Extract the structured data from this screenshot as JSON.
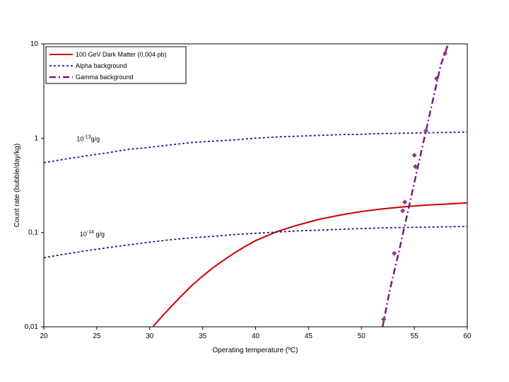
{
  "chart_data": {
    "type": "line",
    "title": "",
    "xlabel": "Operating temperature (ºC)",
    "ylabel": "Count rate (bubble/day/kg)",
    "xlim": [
      20,
      60
    ],
    "ylim": [
      0.01,
      10
    ],
    "y_scale": "log",
    "x_ticks": [
      "20",
      "25",
      "30",
      "35",
      "40",
      "45",
      "50",
      "55",
      "60"
    ],
    "y_ticks": [
      "0,01",
      "0,1",
      "1",
      "10"
    ],
    "grid": false,
    "legend_position": "top-left",
    "colors": {
      "dark_matter": "#cc0000",
      "alpha": "#1a1a99",
      "gamma": "#7a1a7a",
      "gamma_markers": "#8a3a8a"
    },
    "series": [
      {
        "name": "100 GeV Dark Matter (0,004 pb)",
        "style": "solid",
        "x": [
          30.3,
          31,
          32,
          33,
          34,
          35,
          36,
          37,
          38,
          39,
          40,
          42,
          44,
          46,
          48,
          50,
          52,
          54,
          56,
          58,
          60
        ],
        "y": [
          0.01,
          0.0123,
          0.0163,
          0.0213,
          0.0275,
          0.0345,
          0.0425,
          0.051,
          0.0607,
          0.071,
          0.082,
          0.102,
          0.12,
          0.138,
          0.153,
          0.167,
          0.178,
          0.187,
          0.195,
          0.2,
          0.206
        ]
      },
      {
        "name": "Alpha background",
        "style": "dotted",
        "x": [
          20,
          22,
          24,
          26,
          28,
          30,
          32,
          34,
          36,
          38,
          40,
          42,
          44,
          46,
          48,
          50,
          52,
          54,
          56,
          58,
          60
        ],
        "y": [
          0.55,
          0.6,
          0.65,
          0.7,
          0.76,
          0.8,
          0.85,
          0.9,
          0.93,
          0.96,
          1.0,
          1.03,
          1.05,
          1.07,
          1.09,
          1.1,
          1.12,
          1.13,
          1.14,
          1.15,
          1.16
        ]
      },
      {
        "name": "Alpha background (10^-14 g/g)",
        "style": "dotted",
        "x": [
          20,
          22,
          24,
          26,
          28,
          30,
          32,
          34,
          36,
          38,
          40,
          42,
          44,
          46,
          48,
          50,
          52,
          54,
          56,
          58,
          60
        ],
        "y": [
          0.054,
          0.059,
          0.064,
          0.069,
          0.074,
          0.079,
          0.084,
          0.088,
          0.091,
          0.095,
          0.098,
          0.101,
          0.104,
          0.106,
          0.108,
          0.11,
          0.112,
          0.113,
          0.114,
          0.115,
          0.116
        ]
      },
      {
        "name": "Gamma background",
        "style": "dashdot",
        "x": [
          52,
          52.7,
          53.5,
          54.3,
          55.1,
          55.9,
          56.7,
          57.5,
          58.2
        ],
        "y": [
          0.01,
          0.025,
          0.06,
          0.15,
          0.38,
          0.95,
          2.4,
          6.0,
          10.0
        ]
      }
    ],
    "gamma_points": {
      "x": [
        52.1,
        53.1,
        53.9,
        54.1,
        55.0,
        55.1,
        56.1,
        57.1,
        57.9
      ],
      "y": [
        0.012,
        0.06,
        0.17,
        0.21,
        0.66,
        0.5,
        1.2,
        4.3,
        7.9
      ]
    },
    "annotations": [
      {
        "base": "10",
        "exp": "-13",
        "suffix": "g/g",
        "x": 23.1,
        "y": 0.93
      },
      {
        "base": "10",
        "exp": "-14",
        "suffix": " g/g",
        "x": 23.4,
        "y": 0.091
      }
    ],
    "legend": [
      {
        "label": "100 GeV Dark Matter (0,004 pb)",
        "style": "solid"
      },
      {
        "label": "Alpha background",
        "style": "dotted"
      },
      {
        "label": "Gamma background",
        "style": "dashdot"
      }
    ]
  }
}
